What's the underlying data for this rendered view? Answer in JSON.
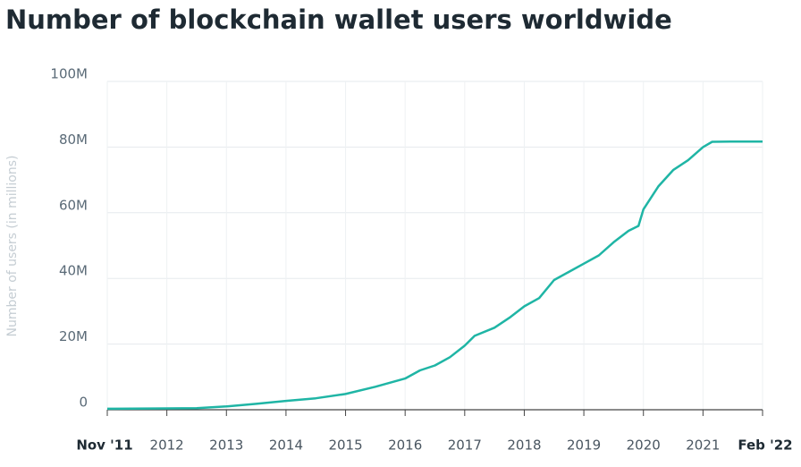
{
  "chart_data": {
    "type": "line",
    "title": "Number of blockchain wallet users worldwide",
    "y_label": "Number of users (in millions)",
    "x": [
      "2011-11",
      "2012-01",
      "2012-07",
      "2013-01",
      "2013-07",
      "2014-01",
      "2014-07",
      "2015-01",
      "2015-07",
      "2016-01",
      "2016-04",
      "2016-07",
      "2016-10",
      "2017-01",
      "2017-03",
      "2017-07",
      "2017-10",
      "2018-01",
      "2018-04",
      "2018-07",
      "2018-10",
      "2019-01",
      "2019-04",
      "2019-07",
      "2019-10",
      "2019-12",
      "2020-01",
      "2020-04",
      "2020-07",
      "2020-10",
      "2021-01",
      "2021-03",
      "2021-07",
      "2022-02"
    ],
    "series": [
      {
        "name": "Users",
        "color": "#1fb5a5",
        "values": [
          0.3,
          0.4,
          0.5,
          1,
          1.8,
          2.7,
          3.5,
          4.8,
          7,
          9.5,
          12,
          13.5,
          16,
          19.5,
          22.5,
          25,
          28,
          31.5,
          34,
          39.5,
          42,
          44.5,
          47,
          51,
          54.5,
          56,
          61,
          68,
          73,
          76,
          80,
          81.6,
          81.7,
          81.7
        ]
      }
    ],
    "xlim": [
      "2011-11",
      "2022-02"
    ],
    "xticks": [
      {
        "value": "2011-11",
        "label": "Nov '11"
      },
      {
        "value": "2012-01",
        "label": "2012"
      },
      {
        "value": "2013-01",
        "label": "2013"
      },
      {
        "value": "2014-01",
        "label": "2014"
      },
      {
        "value": "2015-01",
        "label": "2015"
      },
      {
        "value": "2016-01",
        "label": "2016"
      },
      {
        "value": "2017-01",
        "label": "2017"
      },
      {
        "value": "2018-01",
        "label": "2018"
      },
      {
        "value": "2019-01",
        "label": "2019"
      },
      {
        "value": "2020-01",
        "label": "2020"
      },
      {
        "value": "2021-01",
        "label": "2021"
      },
      {
        "value": "2022-02",
        "label": "Feb '22"
      }
    ],
    "ylim": [
      0,
      100
    ],
    "yticks": [
      0,
      {
        "value": 20,
        "label": "20M"
      },
      {
        "value": 40,
        "label": "40M"
      },
      {
        "value": 60,
        "label": "60M"
      },
      {
        "value": 80,
        "label": "80M"
      },
      {
        "value": 100,
        "label": "100M"
      }
    ],
    "grid": true
  }
}
